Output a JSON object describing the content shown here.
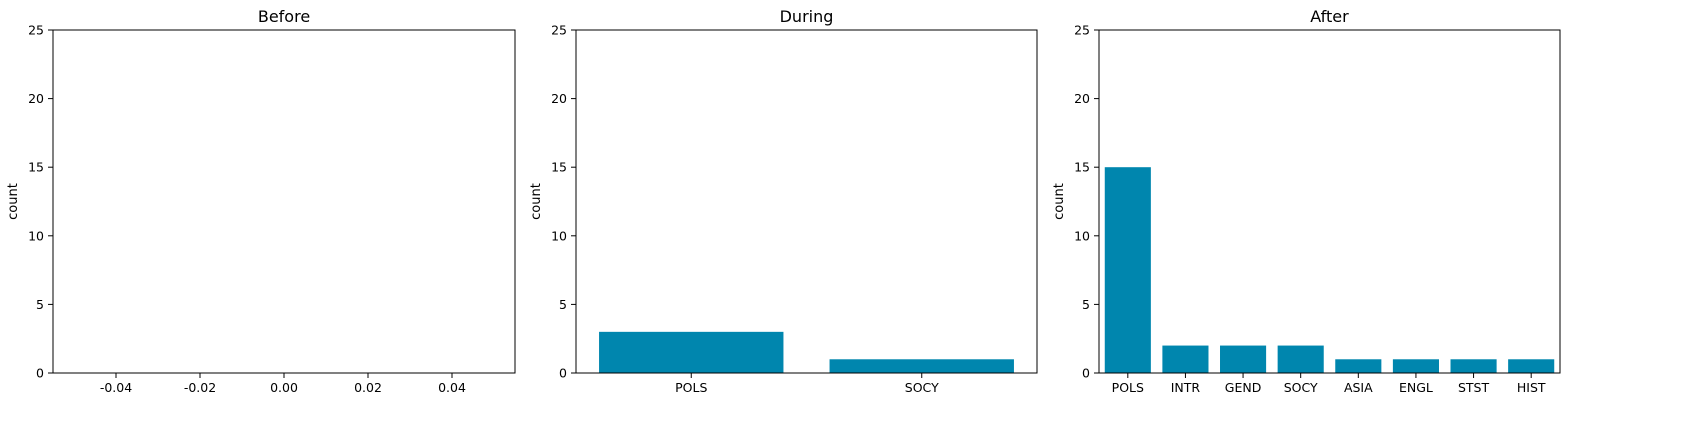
{
  "chart_data": [
    {
      "type": "bar",
      "title": "Before",
      "ylabel": "count",
      "categories": [],
      "values": [],
      "ylim": [
        0,
        25
      ],
      "yticks": [
        0,
        5,
        10,
        15,
        20,
        25
      ],
      "xlim": [
        -0.055,
        0.055
      ],
      "xticks": [
        "-0.04",
        "-0.02",
        "0.00",
        "0.02",
        "0.04"
      ],
      "xtick_values": [
        -0.04,
        -0.02,
        0.0,
        0.02,
        0.04
      ],
      "bar_color": "#0086ae",
      "grid": false
    },
    {
      "type": "bar",
      "title": "During",
      "ylabel": "count",
      "categories": [
        "POLS",
        "SOCY"
      ],
      "values": [
        3,
        1
      ],
      "ylim": [
        0,
        25
      ],
      "yticks": [
        0,
        5,
        10,
        15,
        20,
        25
      ],
      "bar_color": "#0086ae",
      "grid": false
    },
    {
      "type": "bar",
      "title": "After",
      "ylabel": "count",
      "categories": [
        "POLS",
        "INTR",
        "GEND",
        "SOCY",
        "ASIA",
        "ENGL",
        "STST",
        "HIST"
      ],
      "values": [
        15,
        2,
        2,
        2,
        1,
        1,
        1,
        1
      ],
      "ylim": [
        0,
        25
      ],
      "yticks": [
        0,
        5,
        10,
        15,
        20,
        25
      ],
      "bar_color": "#0086ae",
      "grid": false
    }
  ]
}
